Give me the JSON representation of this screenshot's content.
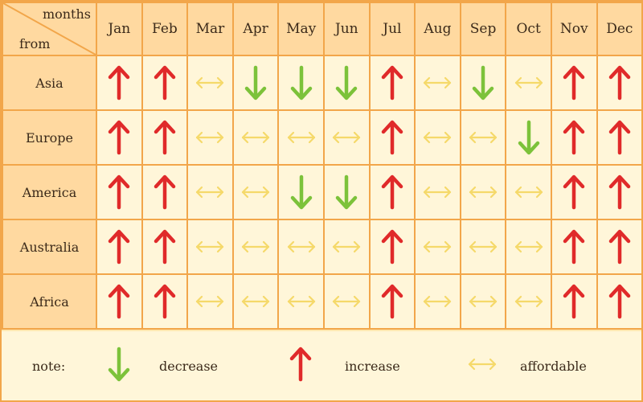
{
  "header": {
    "corner_top": "months",
    "corner_bottom": "from",
    "months": [
      "Jan",
      "Feb",
      "Mar",
      "Apr",
      "May",
      "Jun",
      "Jul",
      "Aug",
      "Sep",
      "Oct",
      "Nov",
      "Dec"
    ]
  },
  "rows": [
    {
      "region": "Asia",
      "trend": [
        "increase",
        "increase",
        "affordable",
        "decrease",
        "decrease",
        "decrease",
        "increase",
        "affordable",
        "decrease",
        "affordable",
        "increase",
        "increase"
      ]
    },
    {
      "region": "Europe",
      "trend": [
        "increase",
        "increase",
        "affordable",
        "affordable",
        "affordable",
        "affordable",
        "increase",
        "affordable",
        "affordable",
        "decrease",
        "increase",
        "increase"
      ]
    },
    {
      "region": "America",
      "trend": [
        "increase",
        "increase",
        "affordable",
        "affordable",
        "decrease",
        "decrease",
        "increase",
        "affordable",
        "affordable",
        "affordable",
        "increase",
        "increase"
      ]
    },
    {
      "region": "Australia",
      "trend": [
        "increase",
        "increase",
        "affordable",
        "affordable",
        "affordable",
        "affordable",
        "increase",
        "affordable",
        "affordable",
        "affordable",
        "increase",
        "increase"
      ]
    },
    {
      "region": "Africa",
      "trend": [
        "increase",
        "increase",
        "affordable",
        "affordable",
        "affordable",
        "affordable",
        "increase",
        "affordable",
        "affordable",
        "affordable",
        "increase",
        "increase"
      ]
    }
  ],
  "legend": {
    "label": "note:",
    "decrease": "decrease",
    "increase": "increase",
    "affordable": "affordable"
  },
  "colors": {
    "increase": "#e02a2a",
    "decrease": "#7cc23a",
    "affordable": "#f5d96a"
  }
}
